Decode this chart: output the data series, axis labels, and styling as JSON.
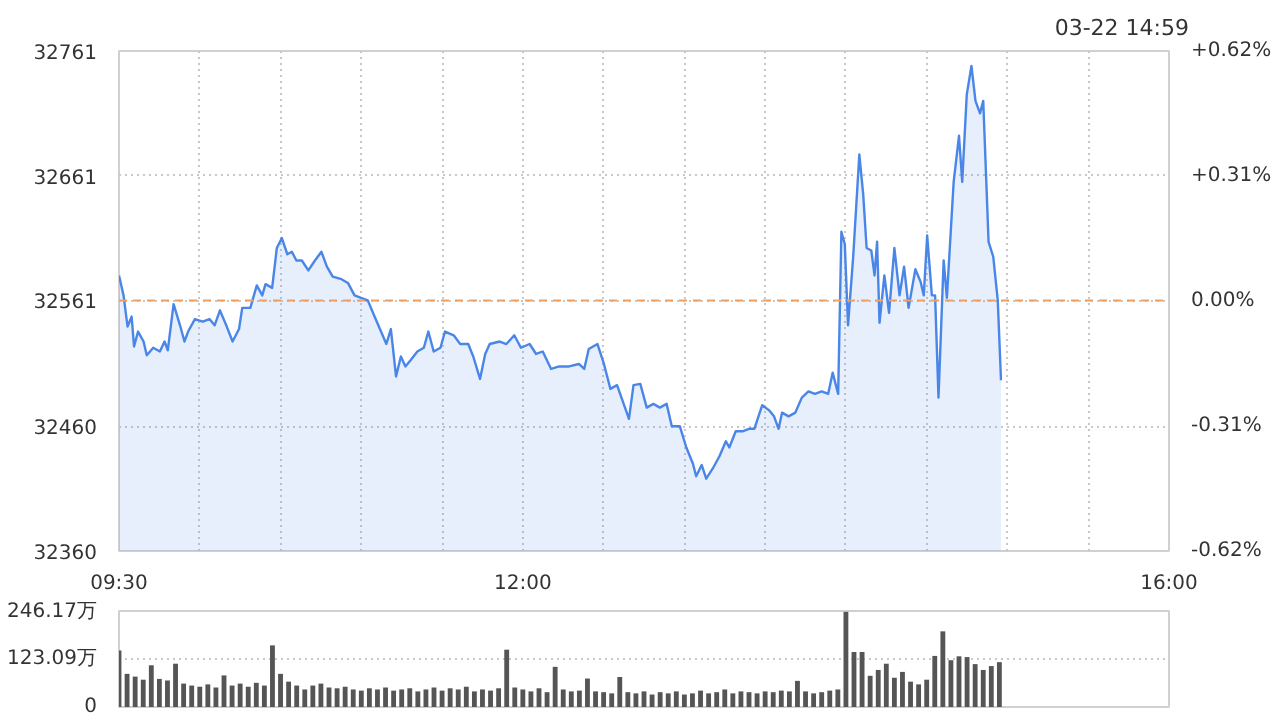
{
  "chart_data": [
    {
      "type": "area",
      "annotations": [
        "03-22 14:59"
      ],
      "xlim": [
        9.5,
        16
      ],
      "xticks": [
        {
          "value": 9.5,
          "label": "09:30"
        },
        {
          "value": 10,
          "label": null
        },
        {
          "value": 10.5,
          "label": null
        },
        {
          "value": 11,
          "label": null
        },
        {
          "value": 11.5,
          "label": null
        },
        {
          "value": 12,
          "label": "12:00"
        },
        {
          "value": 12.5,
          "label": null
        },
        {
          "value": 13,
          "label": null
        },
        {
          "value": 13.5,
          "label": null
        },
        {
          "value": 14,
          "label": null
        },
        {
          "value": 14.5,
          "label": null
        },
        {
          "value": 15,
          "label": null
        },
        {
          "value": 15.5,
          "label": null
        },
        {
          "value": 16,
          "label": "16:00"
        }
      ],
      "ylim": [
        32360,
        32761
      ],
      "yticks": [
        32360,
        32460,
        32561,
        32661,
        32761
      ],
      "y2lim": [
        -0.62,
        0.62
      ],
      "y2ticks": [
        {
          "value": -0.62,
          "label": "-0.62%"
        },
        {
          "value": -0.31,
          "label": "-0.31%"
        },
        {
          "value": 0,
          "label": "0.00%"
        },
        {
          "value": 0.31,
          "label": "+0.31%"
        },
        {
          "value": 0.62,
          "label": "+0.62%"
        }
      ],
      "grid": true,
      "ref_lines": [
        {
          "axis": "y",
          "value": 32561,
          "color": "#f0a060",
          "line_style": "dashed"
        }
      ],
      "series": [
        {
          "color": "#4a86e8",
          "x": [
            9.5,
            9.528,
            9.553,
            9.578,
            9.593,
            9.618,
            9.652,
            9.672,
            9.712,
            9.753,
            9.782,
            9.802,
            9.838,
            9.88,
            9.905,
            9.928,
            9.97,
            10.018,
            10.06,
            10.092,
            10.125,
            10.167,
            10.203,
            10.243,
            10.263,
            10.313,
            10.353,
            10.387,
            10.407,
            10.448,
            10.477,
            10.508,
            10.542,
            10.57,
            10.598,
            10.632,
            10.672,
            10.713,
            10.753,
            10.787,
            10.823,
            10.877,
            10.917,
            10.958,
            10.998,
            11.04,
            11.082,
            11.122,
            11.155,
            11.183,
            11.215,
            11.245,
            11.273,
            11.305,
            11.347,
            11.387,
            11.415,
            11.448,
            11.49,
            11.518,
            11.572,
            11.612,
            11.662,
            11.693,
            11.735,
            11.767,
            11.795,
            11.857,
            11.898,
            11.947,
            11.988,
            12.042,
            12.082,
            12.123,
            12.175,
            12.225,
            12.287,
            12.347,
            12.38,
            12.408,
            12.462,
            12.502,
            12.542,
            12.583,
            12.657,
            12.685,
            12.727,
            12.767,
            12.808,
            12.848,
            12.89,
            12.922,
            12.972,
            13.012,
            13.053,
            13.073,
            13.107,
            13.135,
            13.175,
            13.217,
            13.257,
            13.278,
            13.318,
            13.36,
            13.4,
            13.433,
            13.482,
            13.523,
            13.555,
            13.583,
            13.605,
            13.645,
            13.687,
            13.727,
            13.768,
            13.808,
            13.85,
            13.89,
            13.918,
            13.952,
            13.972,
            13.993,
            14.013,
            14.045,
            14.083,
            14.107,
            14.128,
            14.157,
            14.177,
            14.193,
            14.208,
            14.238,
            14.267,
            14.3,
            14.332,
            14.36,
            14.388,
            14.43,
            14.462,
            14.482,
            14.503,
            14.532,
            14.552,
            14.573,
            14.605,
            14.625,
            14.667,
            14.7,
            14.72,
            14.748,
            14.777,
            14.802,
            14.83,
            14.85,
            14.883,
            14.912,
            14.94,
            14.96
          ],
          "values": [
            32581,
            32565,
            32540,
            32548,
            32524,
            32536,
            32528,
            32517,
            32523,
            32520,
            32528,
            32521,
            32558,
            32540,
            32528,
            32536,
            32546,
            32544,
            32546,
            32541,
            32553,
            32540,
            32528,
            32538,
            32555,
            32555,
            32573,
            32565,
            32574,
            32571,
            32603,
            32611,
            32598,
            32600,
            32593,
            32593,
            32585,
            32593,
            32600,
            32588,
            32580,
            32578,
            32575,
            32565,
            32563,
            32561,
            32548,
            32536,
            32526,
            32538,
            32500,
            32516,
            32508,
            32513,
            32520,
            32523,
            32536,
            32520,
            32523,
            32536,
            32533,
            32526,
            32526,
            32516,
            32498,
            32518,
            32526,
            32528,
            32526,
            32533,
            32523,
            32526,
            32518,
            32520,
            32506,
            32508,
            32508,
            32510,
            32506,
            32522,
            32526,
            32510,
            32490,
            32493,
            32466,
            32493,
            32494,
            32475,
            32478,
            32475,
            32478,
            32460,
            32460,
            32443,
            32430,
            32420,
            32429,
            32418,
            32426,
            32436,
            32448,
            32443,
            32456,
            32456,
            32458,
            32458,
            32477,
            32473,
            32468,
            32458,
            32471,
            32468,
            32471,
            32483,
            32488,
            32486,
            32488,
            32486,
            32503,
            32486,
            32616,
            32606,
            32541,
            32596,
            32678,
            32646,
            32603,
            32601,
            32581,
            32608,
            32543,
            32581,
            32551,
            32603,
            32565,
            32588,
            32555,
            32586,
            32576,
            32565,
            32613,
            32565,
            32565,
            32483,
            32593,
            32563,
            32656,
            32693,
            32656,
            32726,
            32749,
            32721,
            32711,
            32721,
            32608,
            32596,
            32561,
            32497
          ]
        }
      ]
    },
    {
      "type": "bar",
      "xlim": [
        9.5,
        16
      ],
      "ylim": [
        0,
        246.17
      ],
      "yticks": [
        0,
        {
          "value": 123.09,
          "label": "123.09万"
        },
        {
          "value": 246.17,
          "label": "246.17万"
        }
      ],
      "grid": "y",
      "tick_labels": "y",
      "series": [
        {
          "color": "#555555",
          "x": [
            9.5,
            9.55,
            9.6,
            9.65,
            9.7,
            9.75,
            9.8,
            9.85,
            9.9,
            9.95,
            10.0,
            10.05,
            10.1,
            10.15,
            10.2,
            10.25,
            10.3,
            10.35,
            10.4,
            10.45,
            10.5,
            10.55,
            10.6,
            10.65,
            10.7,
            10.75,
            10.8,
            10.85,
            10.9,
            10.95,
            11.0,
            11.05,
            11.1,
            11.15,
            11.2,
            11.25,
            11.3,
            11.35,
            11.4,
            11.45,
            11.5,
            11.55,
            11.6,
            11.65,
            11.7,
            11.75,
            11.8,
            11.85,
            11.9,
            11.95,
            12.0,
            12.05,
            12.1,
            12.15,
            12.2,
            12.25,
            12.3,
            12.35,
            12.4,
            12.45,
            12.5,
            12.55,
            12.6,
            12.65,
            12.7,
            12.75,
            12.8,
            12.85,
            12.9,
            12.95,
            13.0,
            13.05,
            13.1,
            13.15,
            13.2,
            13.25,
            13.3,
            13.35,
            13.4,
            13.45,
            13.5,
            13.55,
            13.6,
            13.65,
            13.7,
            13.75,
            13.8,
            13.85,
            13.9,
            13.95,
            14.0,
            14.05,
            14.1,
            14.15,
            14.2,
            14.25,
            14.3,
            14.35,
            14.4,
            14.45,
            14.5,
            14.55,
            14.6,
            14.65,
            14.7,
            14.75,
            14.8,
            14.85,
            14.9,
            14.95
          ],
          "values": [
            145,
            85,
            78,
            70,
            107,
            72,
            68,
            111,
            60,
            55,
            52,
            58,
            50,
            81,
            55,
            60,
            52,
            62,
            55,
            158,
            85,
            65,
            55,
            45,
            55,
            60,
            50,
            48,
            52,
            45,
            42,
            48,
            45,
            50,
            42,
            45,
            48,
            40,
            45,
            50,
            42,
            48,
            45,
            52,
            40,
            45,
            42,
            48,
            147,
            50,
            45,
            40,
            48,
            38,
            103,
            45,
            40,
            42,
            73,
            40,
            38,
            35,
            77,
            38,
            35,
            40,
            32,
            38,
            35,
            40,
            32,
            35,
            42,
            35,
            38,
            45,
            35,
            40,
            38,
            35,
            40,
            38,
            42,
            40,
            67,
            40,
            35,
            38,
            42,
            45,
            244,
            141,
            141,
            80,
            95,
            111,
            75,
            90,
            65,
            58,
            70,
            131,
            194,
            120,
            130,
            128,
            110,
            95,
            105,
            115
          ]
        }
      ]
    }
  ]
}
